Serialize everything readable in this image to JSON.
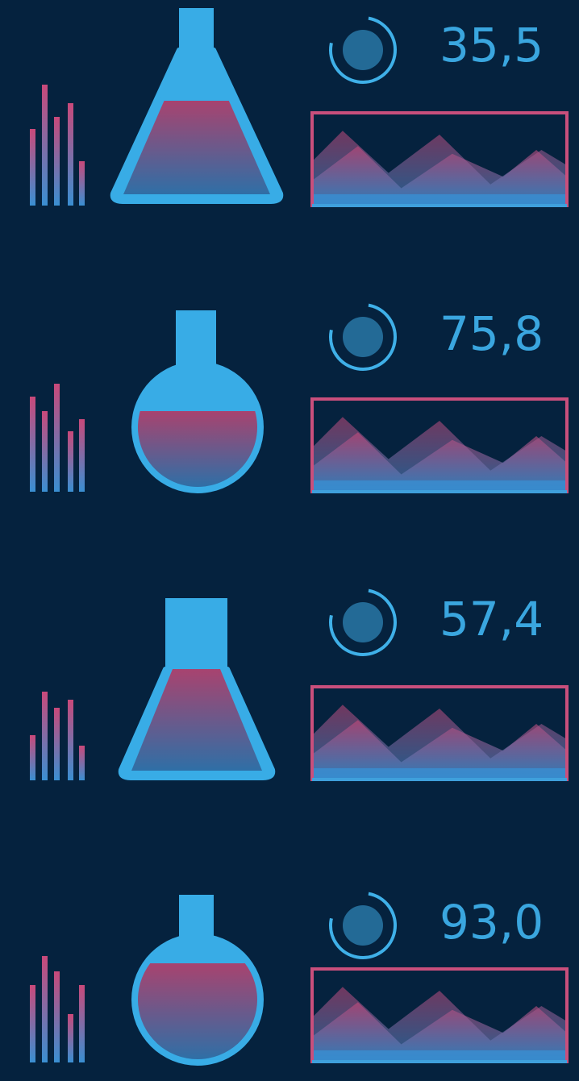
{
  "readings": [
    "35,5",
    "75,8",
    "57,4",
    "93,0"
  ]
}
